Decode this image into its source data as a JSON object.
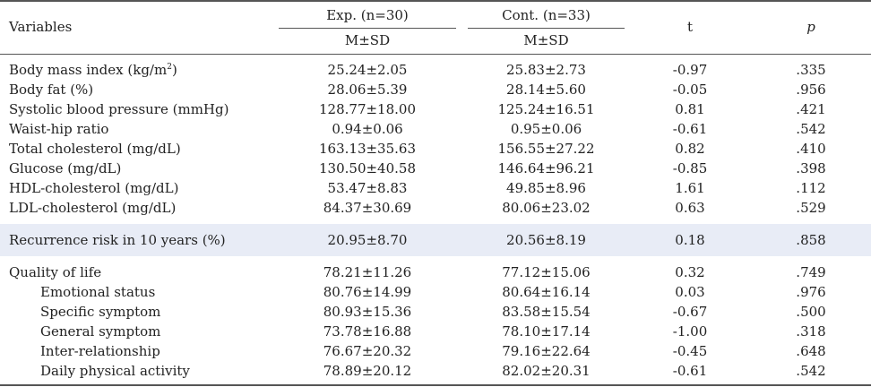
{
  "header": {
    "variables": "Variables",
    "exp": "Exp. (n=30)",
    "cont": "Cont. (n=33)",
    "exp_sub": "M±SD",
    "cont_sub": "M±SD",
    "t": "t",
    "p": "p"
  },
  "rows": [
    {
      "label": "Body mass index (kg/m",
      "sup": "2",
      "label_tail": ")",
      "exp": "25.24±2.05",
      "cont": "25.83±2.73",
      "t": "-0.97",
      "p": ".335"
    },
    {
      "label": "Body fat (%)",
      "exp": "28.06±5.39",
      "cont": "28.14±5.60",
      "t": "-0.05",
      "p": ".956"
    },
    {
      "label": "Systolic blood pressure (mmHg)",
      "exp": "128.77±18.00",
      "cont": "125.24±16.51",
      "t": "0.81",
      "p": ".421"
    },
    {
      "label": "Waist-hip ratio",
      "exp": "0.94±0.06",
      "cont": "0.95±0.06",
      "t": "-0.61",
      "p": ".542"
    },
    {
      "label": "Total cholesterol (mg/dL)",
      "exp": "163.13±35.63",
      "cont": "156.55±27.22",
      "t": "0.82",
      "p": ".410"
    },
    {
      "label": "Glucose (mg/dL)",
      "exp": "130.50±40.58",
      "cont": "146.64±96.21",
      "t": "-0.85",
      "p": ".398"
    },
    {
      "label": "HDL-cholesterol (mg/dL)",
      "exp": "53.47±8.83",
      "cont": "49.85±8.96",
      "t": "1.61",
      "p": ".112"
    },
    {
      "label": "LDL-cholesterol (mg/dL)",
      "exp": "84.37±30.69",
      "cont": "80.06±23.02",
      "t": "0.63",
      "p": ".529"
    },
    {
      "label": "Recurrence risk in 10 years (%)",
      "exp": "20.95±8.70",
      "cont": "20.56±8.19",
      "t": "0.18",
      "p": ".858"
    },
    {
      "label": "Quality of life",
      "exp": "78.21±11.26",
      "cont": "77.12±15.06",
      "t": "0.32",
      "p": ".749"
    },
    {
      "label": "Emotional status",
      "exp": "80.76±14.99",
      "cont": "80.64±16.14",
      "t": "0.03",
      "p": ".976"
    },
    {
      "label": "Specific symptom",
      "exp": "80.93±15.36",
      "cont": "83.58±15.54",
      "t": "-0.67",
      "p": ".500"
    },
    {
      "label": "General symptom",
      "exp": "73.78±16.88",
      "cont": "78.10±17.14",
      "t": "-1.00",
      "p": ".318"
    },
    {
      "label": "Inter-relationship",
      "exp": "76.67±20.32",
      "cont": "79.16±22.64",
      "t": "-0.45",
      "p": ".648"
    },
    {
      "label": "Daily physical activity",
      "exp": "78.89±20.12",
      "cont": "82.02±20.31",
      "t": "-0.61",
      "p": ".542"
    }
  ]
}
